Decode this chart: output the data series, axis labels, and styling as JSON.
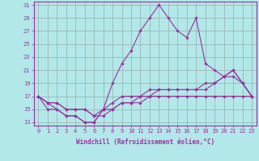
{
  "xlabel": "Windchill (Refroidissement éolien,°C)",
  "ylabel": "",
  "x": [
    0,
    1,
    2,
    3,
    4,
    5,
    6,
    7,
    8,
    9,
    10,
    11,
    12,
    13,
    14,
    15,
    16,
    17,
    18,
    19,
    20,
    21,
    22,
    23
  ],
  "series": [
    [
      17,
      16,
      15,
      14,
      14,
      13,
      13,
      15,
      19,
      22,
      24,
      27,
      29,
      31,
      29,
      27,
      26,
      29,
      22,
      21,
      20,
      21,
      19,
      17
    ],
    [
      17,
      15,
      15,
      14,
      14,
      13,
      13,
      15,
      16,
      17,
      17,
      17,
      18,
      18,
      18,
      18,
      18,
      18,
      18,
      19,
      20,
      21,
      19,
      17
    ],
    [
      17,
      16,
      16,
      15,
      15,
      15,
      14,
      15,
      15,
      16,
      16,
      16,
      17,
      17,
      17,
      17,
      17,
      17,
      17,
      17,
      17,
      17,
      17,
      17
    ],
    [
      17,
      16,
      16,
      15,
      15,
      15,
      14,
      14,
      15,
      16,
      16,
      17,
      17,
      18,
      18,
      18,
      18,
      18,
      19,
      19,
      20,
      20,
      19,
      17
    ]
  ],
  "line_color": "#9b30a0",
  "bg_color": "#b2e8e8",
  "grid_color": "#9aacac",
  "ylim": [
    13,
    31
  ],
  "yticks": [
    13,
    15,
    17,
    19,
    21,
    23,
    25,
    27,
    29,
    31
  ],
  "xticks": [
    0,
    1,
    2,
    3,
    4,
    5,
    6,
    7,
    8,
    9,
    10,
    11,
    12,
    13,
    14,
    15,
    16,
    17,
    18,
    19,
    20,
    21,
    22,
    23
  ],
  "marker": "D",
  "marker_size": 1.8,
  "line_width": 0.8,
  "tick_fontsize": 5.0,
  "xlabel_fontsize": 5.5
}
